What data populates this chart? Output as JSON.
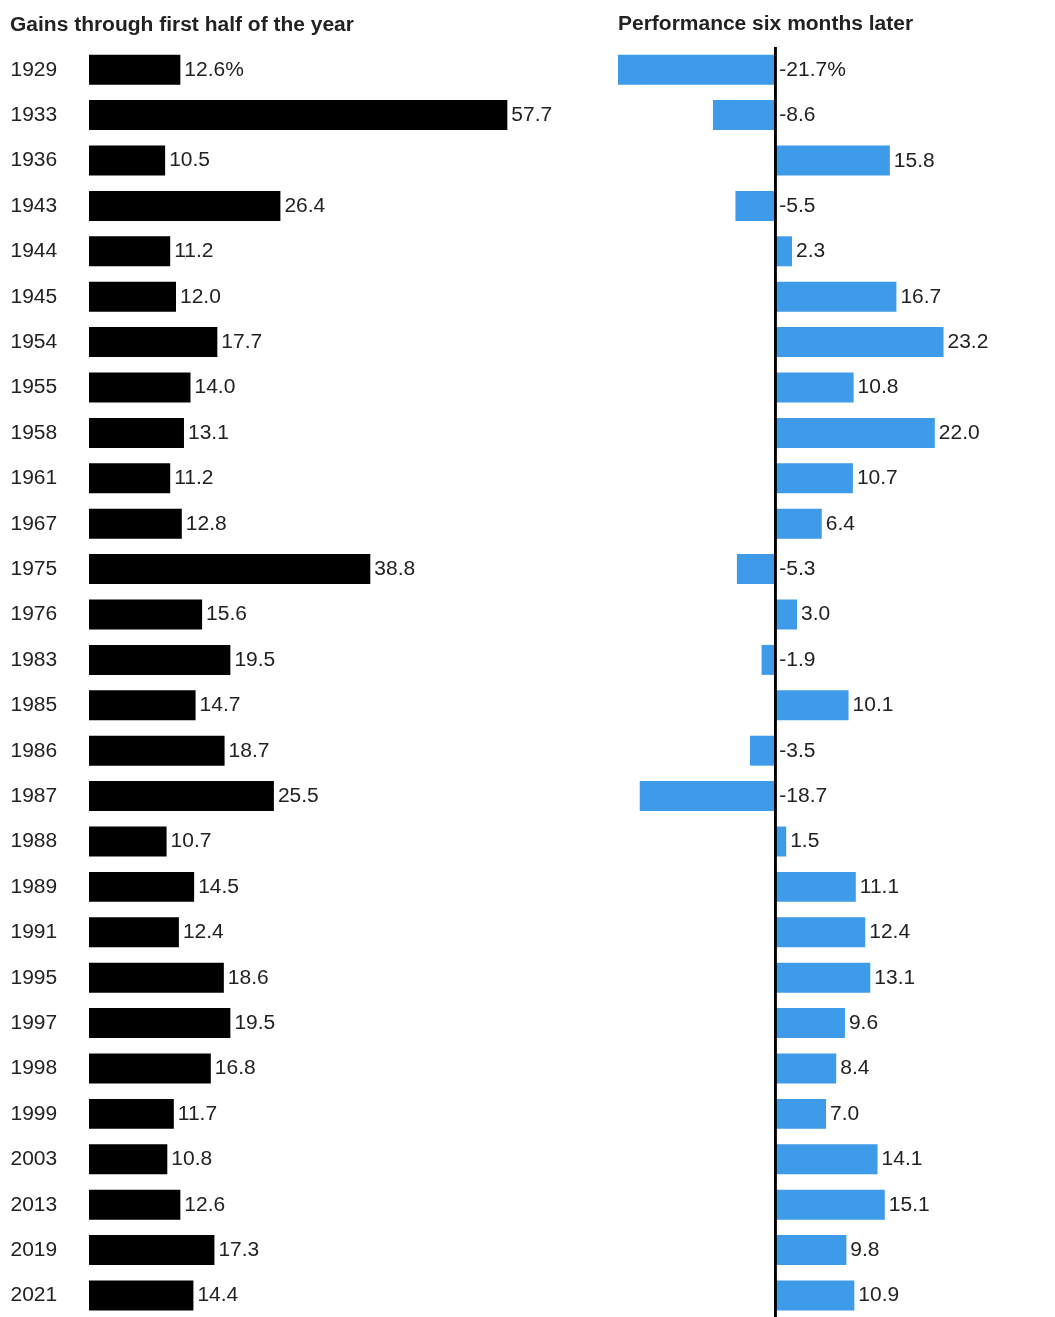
{
  "chart_data": [
    {
      "type": "bar",
      "orientation": "horizontal",
      "title": "Gains through first half of the year",
      "tick_labels": "y",
      "color": "#000000",
      "categories": [
        "1929",
        "1933",
        "1936",
        "1943",
        "1944",
        "1945",
        "1954",
        "1955",
        "1958",
        "1961",
        "1967",
        "1975",
        "1976",
        "1983",
        "1985",
        "1986",
        "1987",
        "1988",
        "1989",
        "1991",
        "1995",
        "1997",
        "1998",
        "1999",
        "2003",
        "2013",
        "2019",
        "2021"
      ],
      "values": [
        12.6,
        57.7,
        10.5,
        26.4,
        11.2,
        12.0,
        17.7,
        14.0,
        13.1,
        11.2,
        12.8,
        38.8,
        15.6,
        19.5,
        14.7,
        18.7,
        25.5,
        10.7,
        14.5,
        12.4,
        18.6,
        19.5,
        16.8,
        11.7,
        10.8,
        12.6,
        17.3,
        14.4
      ],
      "value_labels": [
        "12.6%",
        "57.7",
        "10.5",
        "26.4",
        "11.2",
        "12.0",
        "17.7",
        "14.0",
        "13.1",
        "11.2",
        "12.8",
        "38.8",
        "15.6",
        "19.5",
        "14.7",
        "18.7",
        "25.5",
        "10.7",
        "14.5",
        "12.4",
        "18.6",
        "19.5",
        "16.8",
        "11.7",
        "10.8",
        "12.6",
        "17.3",
        "14.4"
      ]
    },
    {
      "type": "bar",
      "orientation": "horizontal",
      "title": "Performance six months later",
      "tick_labels": false,
      "color": "#3d9be9",
      "categories": [
        "1929",
        "1933",
        "1936",
        "1943",
        "1944",
        "1945",
        "1954",
        "1955",
        "1958",
        "1961",
        "1967",
        "1975",
        "1976",
        "1983",
        "1985",
        "1986",
        "1987",
        "1988",
        "1989",
        "1991",
        "1995",
        "1997",
        "1998",
        "1999",
        "2003",
        "2013",
        "2019",
        "2021"
      ],
      "values": [
        -21.7,
        -8.6,
        15.8,
        -5.5,
        2.3,
        16.7,
        23.2,
        10.8,
        22.0,
        10.7,
        6.4,
        -5.3,
        3.0,
        -1.9,
        10.1,
        -3.5,
        -18.7,
        1.5,
        11.1,
        12.4,
        13.1,
        9.6,
        8.4,
        7.0,
        14.1,
        15.1,
        9.8,
        10.9
      ],
      "value_labels": [
        "-21.7%",
        "-8.6",
        "15.8",
        "-5.5",
        "2.3",
        "16.7",
        "23.2",
        "10.8",
        "22.0",
        "10.7",
        "6.4",
        "-5.3",
        "3.0",
        "-1.9",
        "10.1",
        "-3.5",
        "-18.7",
        "1.5",
        "11.1",
        "12.4",
        "13.1",
        "9.6",
        "8.4",
        "7.0",
        "14.1",
        "15.1",
        "9.8",
        "10.9"
      ]
    }
  ]
}
